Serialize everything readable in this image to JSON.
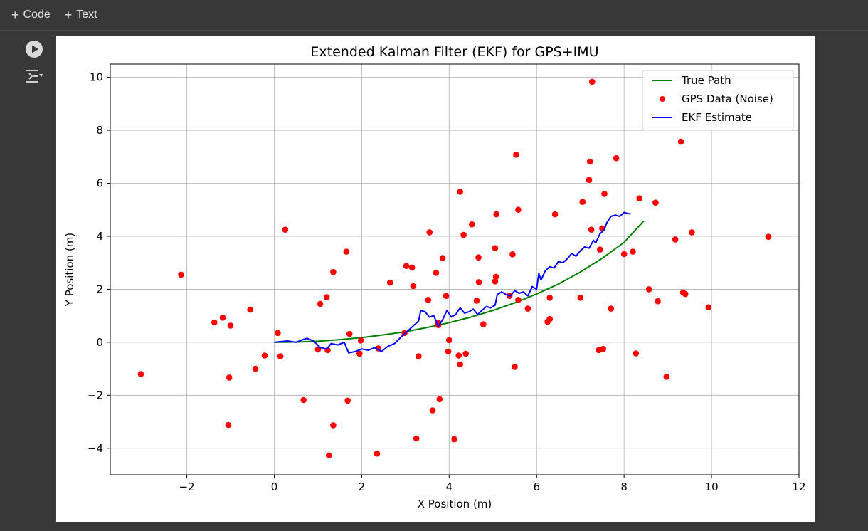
{
  "toolbar": {
    "add_code_label": "Code",
    "add_text_label": "Text"
  },
  "icons": {
    "run": "play-circle-icon",
    "output": "output-toggle-icon",
    "add": "plus-icon"
  },
  "colors": {
    "true_path": "#008000",
    "gps": "#ff0000",
    "ekf": "#0000ff"
  },
  "chart_data": {
    "type": "line",
    "title": "Extended Kalman Filter (EKF) for GPS+IMU",
    "xlabel": "X Position (m)",
    "ylabel": "Y Position (m)",
    "xlim": [
      -3.75,
      12
    ],
    "ylim": [
      -5,
      10.5
    ],
    "xticks": [
      -2,
      0,
      2,
      4,
      6,
      8,
      10,
      12
    ],
    "yticks": [
      -4,
      -2,
      0,
      2,
      4,
      6,
      8,
      10
    ],
    "grid": true,
    "legend_position": "top-right",
    "legend": [
      "True Path",
      "GPS Data (Noise)",
      "EKF Estimate"
    ],
    "series": [
      {
        "name": "True Path",
        "kind": "line",
        "color": "#008000",
        "x": [
          0,
          0.5,
          1,
          1.5,
          2,
          2.5,
          3,
          3.5,
          4,
          4.5,
          5,
          5.5,
          6,
          6.5,
          7,
          7.5,
          8,
          8.45
        ],
        "y": [
          0,
          0.01,
          0.04,
          0.1,
          0.18,
          0.28,
          0.4,
          0.56,
          0.74,
          0.95,
          1.2,
          1.49,
          1.82,
          2.2,
          2.65,
          3.17,
          3.77,
          4.58
        ]
      },
      {
        "name": "GPS Data (Noise)",
        "kind": "scatter",
        "color": "#ff0000",
        "x": [
          -3.05,
          -2.13,
          -1.37,
          -1.18,
          -1.0,
          -1.03,
          -1.05,
          -0.55,
          -0.43,
          -0.22,
          0.08,
          0.14,
          0.25,
          0.67,
          1.05,
          1.0,
          1.2,
          1.22,
          1.25,
          1.35,
          1.35,
          1.65,
          1.68,
          1.72,
          1.95,
          1.98,
          2.35,
          2.38,
          2.65,
          2.98,
          3.02,
          3.15,
          3.18,
          3.25,
          3.3,
          3.52,
          3.55,
          3.62,
          3.7,
          3.75,
          3.75,
          3.78,
          3.85,
          3.93,
          3.98,
          4.0,
          4.12,
          4.22,
          4.25,
          4.25,
          4.33,
          4.38,
          4.52,
          4.63,
          4.67,
          4.68,
          4.78,
          5.05,
          5.05,
          5.07,
          5.08,
          5.38,
          5.45,
          5.5,
          5.53,
          5.58,
          5.58,
          5.8,
          6.25,
          6.3,
          6.3,
          6.42,
          7.0,
          7.05,
          7.2,
          7.22,
          7.25,
          7.27,
          7.42,
          7.45,
          7.5,
          7.52,
          7.55,
          7.7,
          7.82,
          8.0,
          8.2,
          8.27,
          8.35,
          8.57,
          8.72,
          8.77,
          8.97,
          9.17,
          9.3,
          9.35,
          9.4,
          9.55,
          9.93,
          11.3
        ],
        "y": [
          -1.2,
          2.55,
          0.75,
          0.93,
          0.63,
          -1.33,
          -3.12,
          1.23,
          -1.0,
          -0.5,
          0.35,
          -0.53,
          4.25,
          -2.18,
          1.45,
          -0.27,
          1.7,
          -0.3,
          -4.27,
          2.65,
          -3.13,
          3.42,
          -2.2,
          0.32,
          -0.43,
          0.07,
          -4.2,
          -0.23,
          2.25,
          0.35,
          2.88,
          2.82,
          2.12,
          -3.63,
          -0.53,
          1.6,
          4.15,
          -2.57,
          2.62,
          0.65,
          0.73,
          -2.15,
          3.18,
          1.75,
          -0.35,
          0.08,
          -3.66,
          -0.5,
          -0.83,
          5.68,
          4.05,
          -0.43,
          4.45,
          1.57,
          3.2,
          2.27,
          0.68,
          3.55,
          2.3,
          2.47,
          4.83,
          1.75,
          3.32,
          -0.93,
          7.08,
          1.6,
          5.0,
          1.27,
          0.77,
          0.88,
          1.68,
          4.83,
          1.68,
          5.3,
          6.13,
          6.82,
          4.25,
          9.83,
          -0.3,
          3.5,
          4.3,
          -0.25,
          5.6,
          1.27,
          6.95,
          3.33,
          3.42,
          -0.42,
          5.43,
          2.0,
          5.27,
          1.55,
          -1.3,
          3.88,
          7.57,
          1.88,
          1.82,
          4.15,
          1.32,
          3.98
        ]
      },
      {
        "name": "EKF Estimate",
        "kind": "line",
        "color": "#0000ff",
        "x": [
          0.0,
          0.3,
          0.5,
          0.65,
          0.75,
          0.9,
          1.05,
          1.2,
          1.3,
          1.45,
          1.6,
          1.7,
          1.85,
          2.0,
          2.15,
          2.3,
          2.45,
          2.6,
          2.75,
          2.9,
          3.0,
          3.1,
          3.2,
          3.3,
          3.35,
          3.45,
          3.55,
          3.65,
          3.75,
          3.85,
          3.95,
          4.05,
          4.15,
          4.25,
          4.35,
          4.45,
          4.55,
          4.65,
          4.75,
          4.85,
          4.95,
          5.05,
          5.1,
          5.2,
          5.3,
          5.4,
          5.5,
          5.6,
          5.7,
          5.8,
          5.9,
          6.0,
          6.05,
          6.1,
          6.2,
          6.3,
          6.4,
          6.5,
          6.6,
          6.7,
          6.8,
          6.9,
          7.0,
          7.1,
          7.2,
          7.3,
          7.35,
          7.45,
          7.55,
          7.6,
          7.7,
          7.8,
          7.9,
          8.0,
          8.1,
          8.15
        ],
        "y": [
          0.0,
          0.05,
          0.0,
          0.1,
          0.15,
          0.05,
          -0.2,
          -0.25,
          -0.05,
          -0.1,
          0.0,
          -0.4,
          -0.35,
          -0.25,
          -0.3,
          -0.2,
          -0.35,
          -0.15,
          -0.05,
          0.2,
          0.35,
          0.5,
          0.65,
          0.8,
          1.2,
          1.15,
          0.95,
          1.0,
          0.6,
          0.85,
          1.2,
          0.95,
          1.05,
          1.3,
          1.1,
          1.15,
          1.25,
          1.05,
          1.2,
          1.35,
          1.3,
          1.4,
          1.8,
          1.9,
          1.8,
          1.75,
          1.95,
          1.85,
          1.9,
          1.75,
          2.1,
          2.0,
          2.6,
          2.35,
          2.7,
          2.85,
          2.8,
          3.05,
          3.0,
          3.15,
          3.35,
          3.25,
          3.45,
          3.6,
          3.55,
          3.85,
          3.75,
          4.1,
          4.25,
          4.5,
          4.75,
          4.8,
          4.75,
          4.9,
          4.85,
          4.85
        ]
      }
    ]
  }
}
